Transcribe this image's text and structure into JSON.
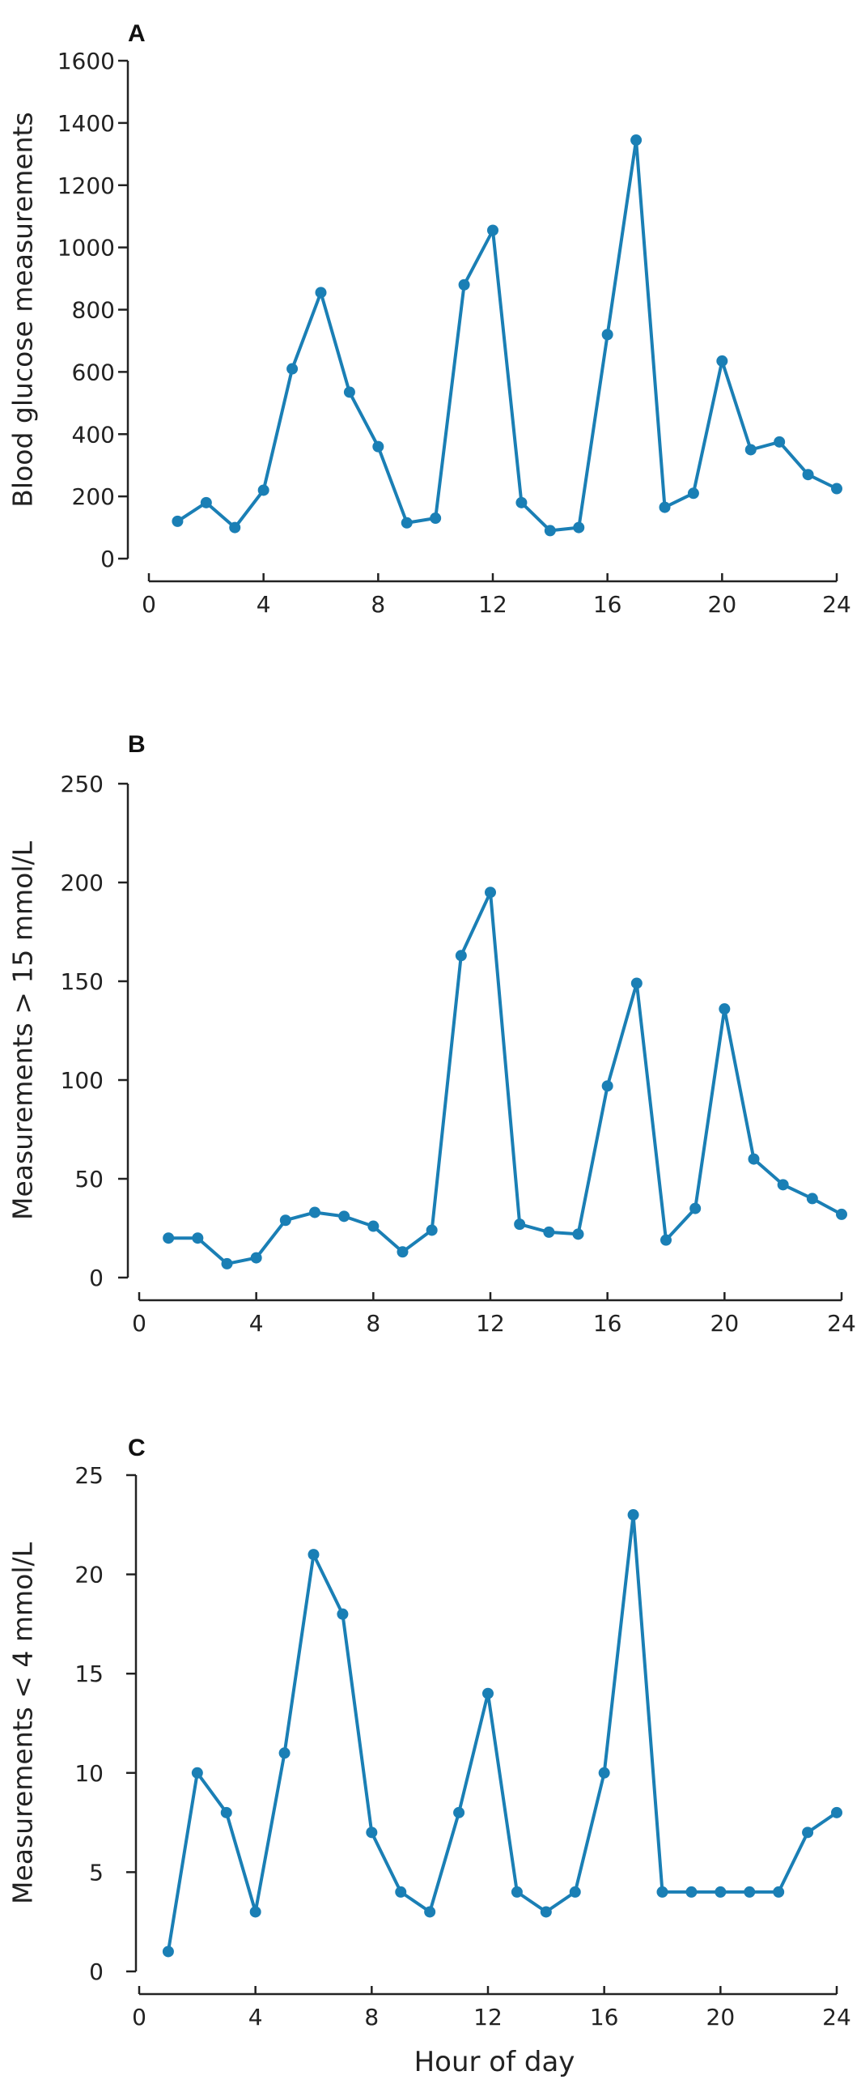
{
  "chart_data": [
    {
      "type": "line",
      "panel_label": "A",
      "ylabel": "Blood glucose measurements",
      "xlabel": "",
      "xlim": [
        0,
        24
      ],
      "ylim": [
        0,
        1600
      ],
      "xticks": [
        0,
        4,
        8,
        12,
        16,
        20,
        24
      ],
      "yticks": [
        0,
        200,
        400,
        600,
        800,
        1000,
        1200,
        1400,
        1600
      ],
      "color": "#1a7fb5",
      "x": [
        1,
        2,
        3,
        4,
        5,
        6,
        7,
        8,
        9,
        10,
        11,
        12,
        13,
        14,
        15,
        16,
        17,
        18,
        19,
        20,
        21,
        22,
        23,
        24
      ],
      "y": [
        120,
        180,
        100,
        220,
        610,
        855,
        535,
        360,
        115,
        130,
        880,
        1055,
        180,
        90,
        100,
        720,
        1345,
        165,
        210,
        635,
        350,
        375,
        270,
        225
      ]
    },
    {
      "type": "line",
      "panel_label": "B",
      "ylabel": "Measurements > 15 mmol/L",
      "xlabel": "",
      "xlim": [
        0,
        24
      ],
      "ylim": [
        0,
        250
      ],
      "xticks": [
        0,
        4,
        8,
        12,
        16,
        20,
        24
      ],
      "yticks": [
        0,
        50,
        100,
        150,
        200,
        250
      ],
      "color": "#1a7fb5",
      "x": [
        1,
        2,
        3,
        4,
        5,
        6,
        7,
        8,
        9,
        10,
        11,
        12,
        13,
        14,
        15,
        16,
        17,
        18,
        19,
        20,
        21,
        22,
        23,
        24
      ],
      "y": [
        20,
        20,
        7,
        10,
        29,
        33,
        31,
        26,
        13,
        24,
        163,
        195,
        27,
        23,
        22,
        97,
        149,
        19,
        35,
        136,
        60,
        47,
        40,
        32
      ]
    },
    {
      "type": "line",
      "panel_label": "C",
      "ylabel": "Measurements < 4 mmol/L",
      "xlabel": "Hour of day",
      "xlim": [
        0,
        24
      ],
      "ylim": [
        0,
        25
      ],
      "xticks": [
        0,
        4,
        8,
        12,
        16,
        20,
        24
      ],
      "yticks": [
        0,
        5,
        10,
        15,
        20,
        25
      ],
      "color": "#1a7fb5",
      "x": [
        1,
        2,
        3,
        4,
        5,
        6,
        7,
        8,
        9,
        10,
        11,
        12,
        13,
        14,
        15,
        16,
        17,
        18,
        19,
        20,
        21,
        22,
        23,
        24
      ],
      "y": [
        1,
        10,
        8,
        3,
        11,
        21,
        18,
        7,
        4,
        3,
        8,
        14,
        4,
        3,
        4,
        10,
        23,
        4,
        4,
        4,
        4,
        4,
        7,
        8
      ]
    }
  ]
}
